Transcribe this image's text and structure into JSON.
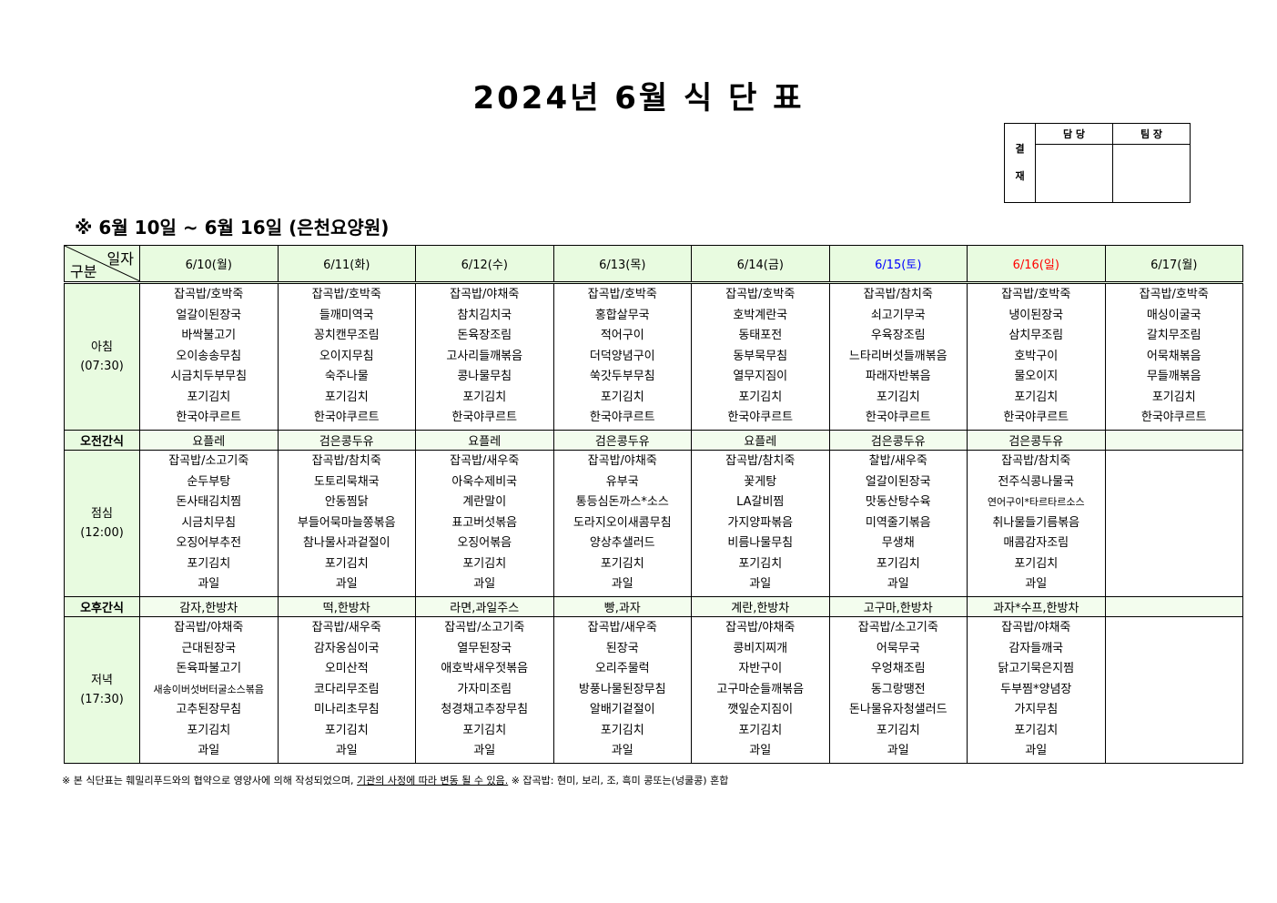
{
  "title": "2024년 6월 식 단 표",
  "approval": {
    "side": [
      "결",
      "재"
    ],
    "columns": [
      "담 당",
      "팀 장"
    ]
  },
  "period": "※ 6월 10일 ~ 6월 16일 (은천요양원)",
  "corner": {
    "top": "일자",
    "bottom": "구분"
  },
  "days": [
    {
      "label": "6/10(월)",
      "color": "#000000"
    },
    {
      "label": "6/11(화)",
      "color": "#000000"
    },
    {
      "label": "6/12(수)",
      "color": "#000000"
    },
    {
      "label": "6/13(목)",
      "color": "#000000"
    },
    {
      "label": "6/14(금)",
      "color": "#000000"
    },
    {
      "label": "6/15(토)",
      "color": "#0000ff"
    },
    {
      "label": "6/16(일)",
      "color": "#ff0000"
    },
    {
      "label": "6/17(월)",
      "color": "#000000"
    }
  ],
  "breakfast": {
    "label": "아침",
    "time": "(07:30)",
    "items": [
      [
        "잡곡밥/호박죽",
        "얼갈이된장국",
        "바싹불고기",
        "오이송송무침",
        "시금치두부무침",
        "포기김치",
        "한국야쿠르트"
      ],
      [
        "잡곡밥/호박죽",
        "들깨미역국",
        "꽁치캔무조림",
        "오이지무침",
        "숙주나물",
        "포기김치",
        "한국야쿠르트"
      ],
      [
        "잡곡밥/야채죽",
        "참치김치국",
        "돈육장조림",
        "고사리들깨볶음",
        "콩나물무침",
        "포기김치",
        "한국야쿠르트"
      ],
      [
        "잡곡밥/호박죽",
        "홍합살무국",
        "적어구이",
        "더덕양념구이",
        "쑥갓두부무침",
        "포기김치",
        "한국야쿠르트"
      ],
      [
        "잡곡밥/호박죽",
        "호박계란국",
        "동태포전",
        "동부묵무침",
        "열무지짐이",
        "포기김치",
        "한국야쿠르트"
      ],
      [
        "잡곡밥/참치죽",
        "쇠고기무국",
        "우육장조림",
        "느타리버섯들깨볶음",
        "파래자반볶음",
        "포기김치",
        "한국야쿠르트"
      ],
      [
        "잡곡밥/호박죽",
        "냉이된장국",
        "삼치무조림",
        "호박구이",
        "물오이지",
        "포기김치",
        "한국야쿠르트"
      ],
      [
        "잡곡밥/호박죽",
        "매싱이굴국",
        "갈치무조림",
        "어묵채볶음",
        "무들깨볶음",
        "포기김치",
        "한국야쿠르트"
      ]
    ]
  },
  "am_snack": {
    "label": "오전간식",
    "items": [
      "요플레",
      "검은콩두유",
      "요플레",
      "검은콩두유",
      "요플레",
      "검은콩두유",
      "검은콩두유",
      ""
    ]
  },
  "lunch": {
    "label": "점심",
    "time": "(12:00)",
    "items": [
      [
        "잡곡밥/소고기죽",
        "순두부탕",
        "돈사태김치찜",
        "시금치무침",
        "오징어부추전",
        "포기김치",
        "과일"
      ],
      [
        "잡곡밥/참치죽",
        "도토리묵채국",
        "안동찜닭",
        "부들어묵마늘쫑볶음",
        "참나물사과겉절이",
        "포기김치",
        "과일"
      ],
      [
        "잡곡밥/새우죽",
        "아욱수제비국",
        "계란말이",
        "표고버섯볶음",
        "오징어볶음",
        "포기김치",
        "과일"
      ],
      [
        "잡곡밥/야채죽",
        "유부국",
        "통등심돈까스*소스",
        "도라지오이새콤무침",
        "양상추샐러드",
        "포기김치",
        "과일"
      ],
      [
        "잡곡밥/참치죽",
        "꽃게탕",
        "LA갈비찜",
        "가지양파볶음",
        "비름나물무침",
        "포기김치",
        "과일"
      ],
      [
        "찰밥/새우죽",
        "얼갈이된장국",
        "맛동산탕수육",
        "미역줄기볶음",
        "무생채",
        "포기김치",
        "과일"
      ],
      [
        "잡곡밥/참치죽",
        "전주식콩나물국",
        "연어구이*타르타르소스",
        "취나물들기름볶음",
        "매콤감자조림",
        "포기김치",
        "과일"
      ],
      []
    ]
  },
  "pm_snack": {
    "label": "오후간식",
    "items": [
      "감자,한방차",
      "떡,한방차",
      "라면,과일주스",
      "빵,과자",
      "계란,한방차",
      "고구마,한방차",
      "과자*수프,한방차",
      ""
    ]
  },
  "dinner": {
    "label": "저녁",
    "time": "(17:30)",
    "items": [
      [
        "잡곡밥/야채죽",
        "근대된장국",
        "돈육파불고기",
        "새송이버섯버터굴소스볶음",
        "고추된장무침",
        "포기김치",
        "과일"
      ],
      [
        "잡곡밥/새우죽",
        "감자옹심이국",
        "오미산적",
        "코다리무조림",
        "미나리초무침",
        "포기김치",
        "과일"
      ],
      [
        "잡곡밥/소고기죽",
        "열무된장국",
        "애호박새우젓볶음",
        "가자미조림",
        "청경채고추장무침",
        "포기김치",
        "과일"
      ],
      [
        "잡곡밥/새우죽",
        "된장국",
        "오리주물럭",
        "방풍나물된장무침",
        "알배기겉절이",
        "포기김치",
        "과일"
      ],
      [
        "잡곡밥/야채죽",
        "콩비지찌개",
        "자반구이",
        "고구마순들깨볶음",
        "깻잎순지짐이",
        "포기김치",
        "과일"
      ],
      [
        "잡곡밥/소고기죽",
        "어묵무국",
        "우엉채조림",
        "동그랑땡전",
        "돈나물유자청샐러드",
        "포기김치",
        "과일"
      ],
      [
        "잡곡밥/야채죽",
        "감자들깨국",
        "닭고기묵은지찜",
        "두부찜*양념장",
        "가지무침",
        "포기김치",
        "과일"
      ],
      []
    ]
  },
  "footer": {
    "part1": "※ 본 식단표는 훼밀리푸드와의 협약으로 영양사에 의해 작성되었으며, ",
    "underlined": "기관의 사정에 따라 변동 될 수 있음.",
    "part2": " ※ 잡곡밥: 현미, 보리, 조, 흑미 콩또는(넝쿨콩) 혼합"
  }
}
